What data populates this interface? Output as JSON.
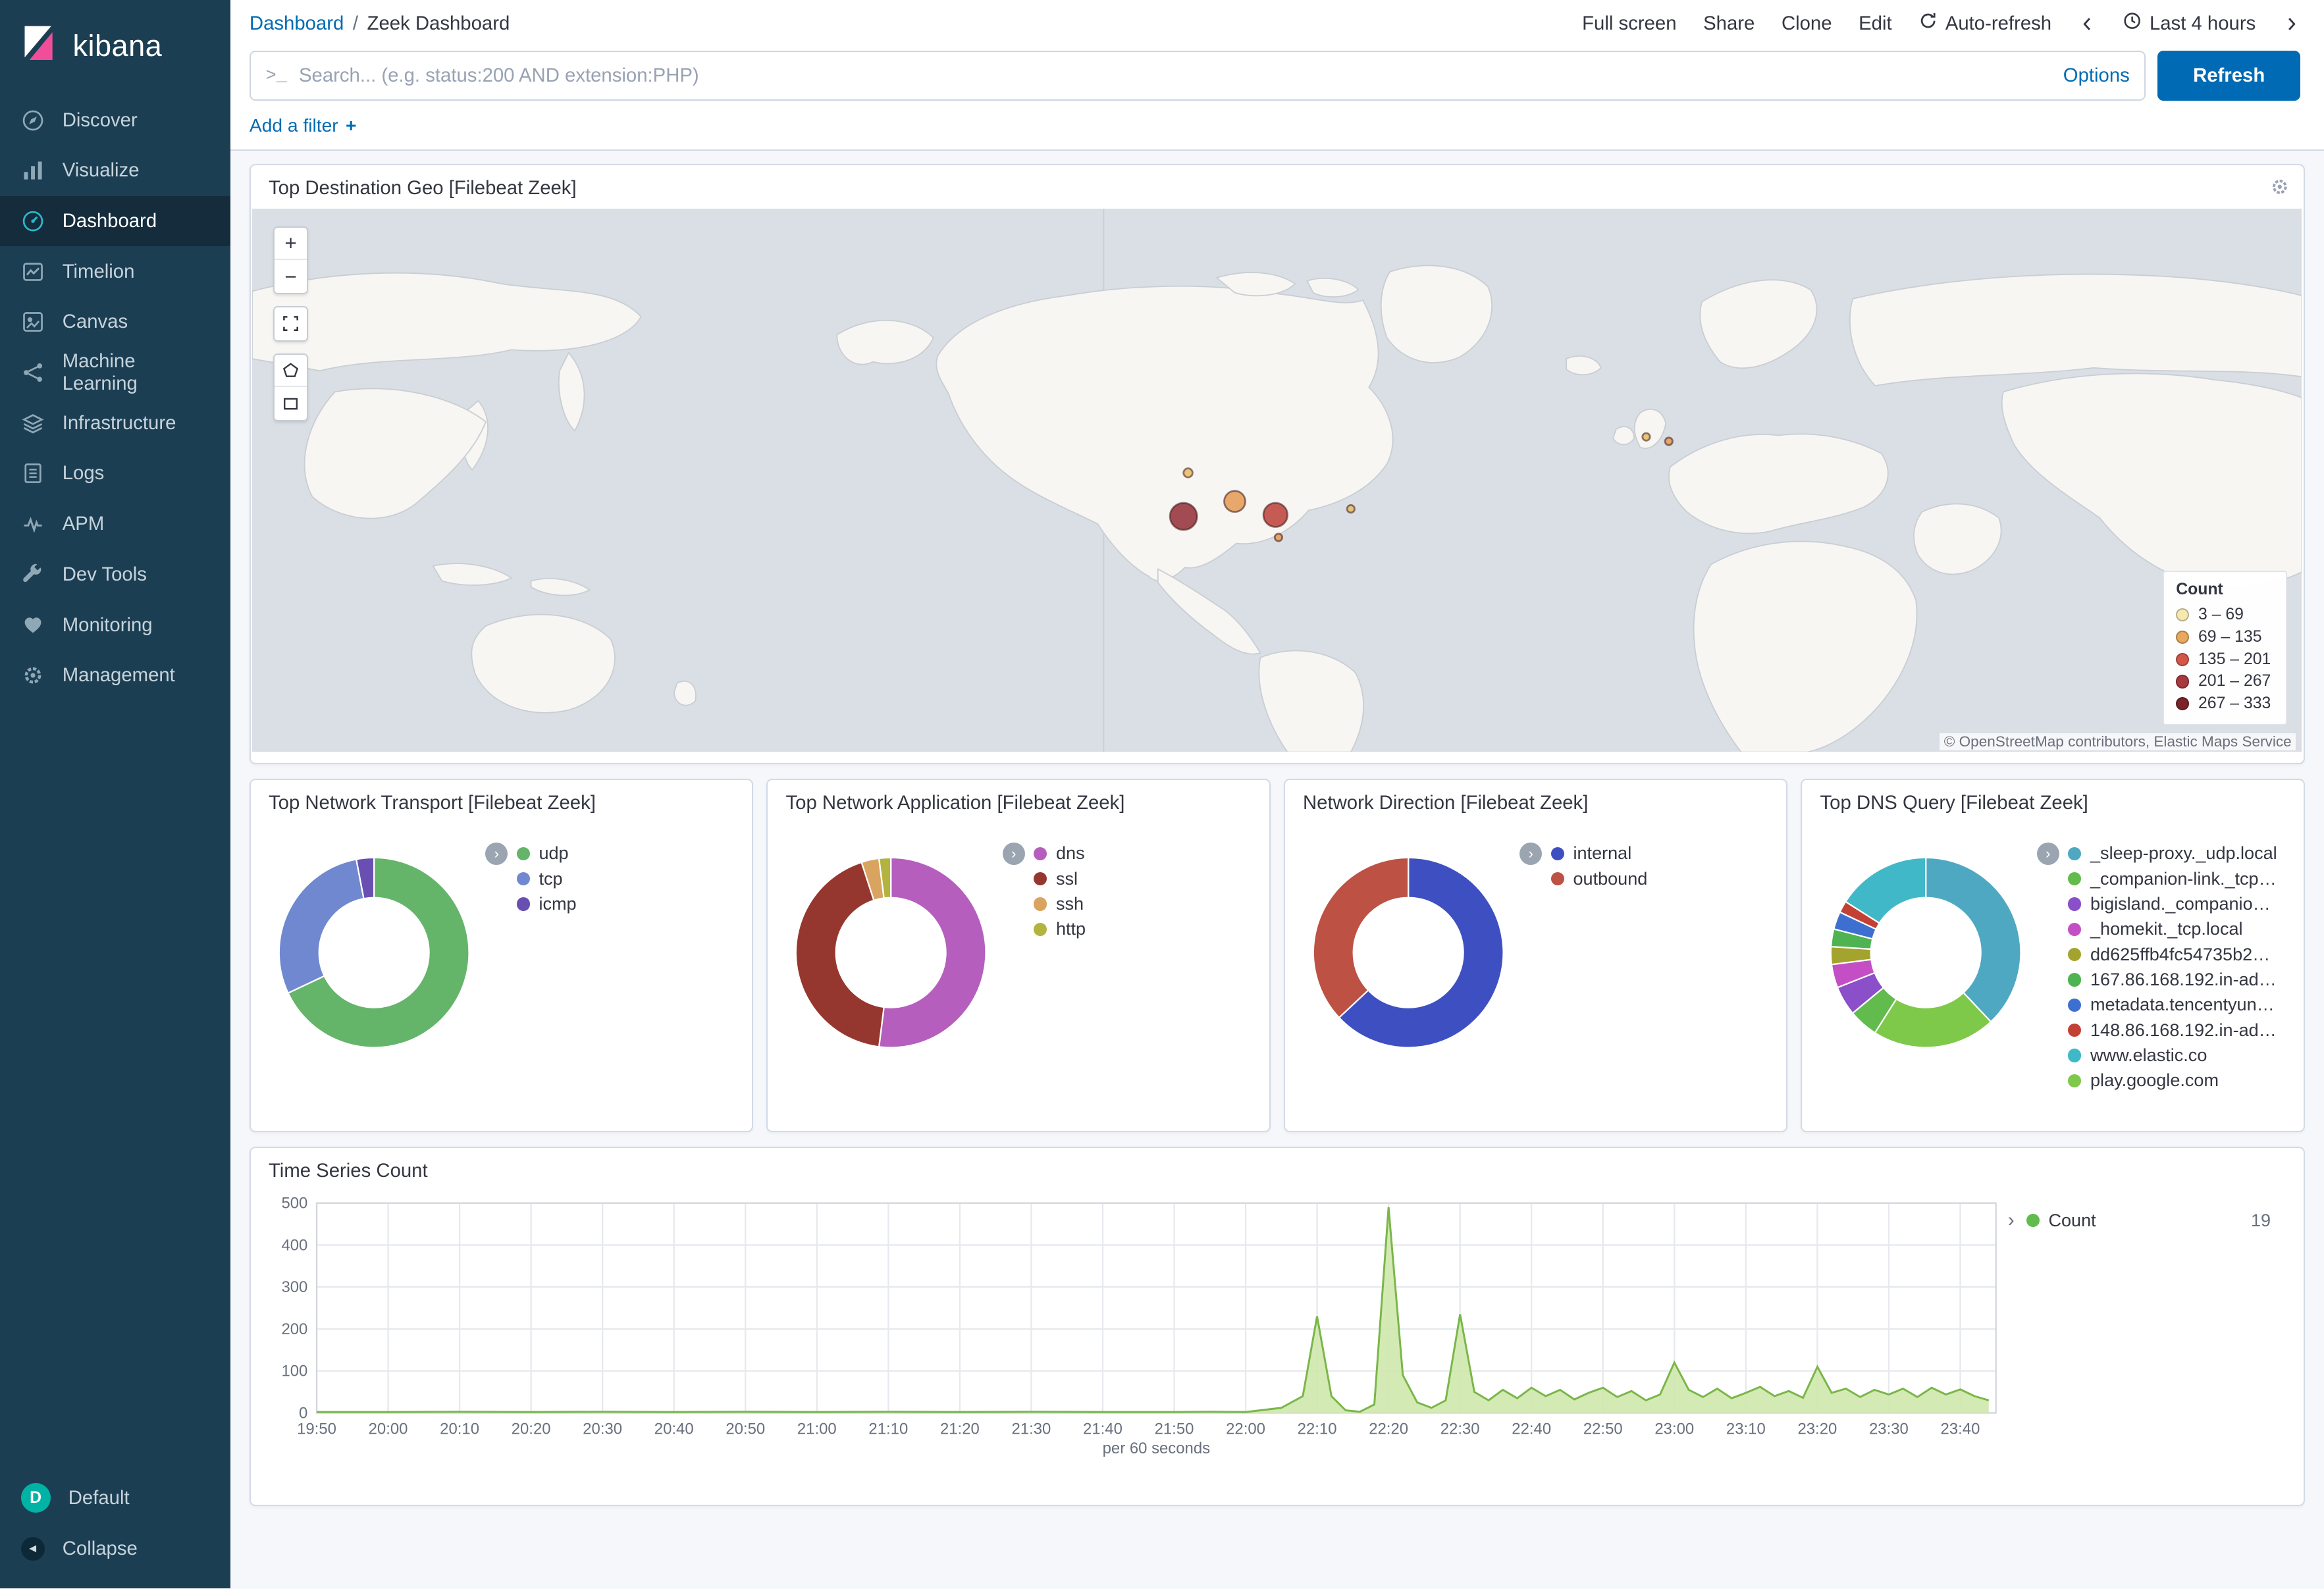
{
  "sidebar": {
    "logo_text": "kibana",
    "items": [
      {
        "label": "Discover",
        "icon": "discover-icon"
      },
      {
        "label": "Visualize",
        "icon": "visualize-icon"
      },
      {
        "label": "Dashboard",
        "icon": "dashboard-icon",
        "selected": true
      },
      {
        "label": "Timelion",
        "icon": "timelion-icon"
      },
      {
        "label": "Canvas",
        "icon": "canvas-icon"
      },
      {
        "label": "Machine Learning",
        "icon": "machine-learning-icon"
      },
      {
        "label": "Infrastructure",
        "icon": "infrastructure-icon"
      },
      {
        "label": "Logs",
        "icon": "logs-icon"
      },
      {
        "label": "APM",
        "icon": "apm-icon"
      },
      {
        "label": "Dev Tools",
        "icon": "dev-tools-icon"
      },
      {
        "label": "Monitoring",
        "icon": "monitoring-icon"
      },
      {
        "label": "Management",
        "icon": "management-icon"
      }
    ],
    "footer": {
      "default_label": "Default",
      "default_avatar": "D",
      "collapse_label": "Collapse"
    }
  },
  "header": {
    "breadcrumb_link": "Dashboard",
    "breadcrumb_sep": "/",
    "breadcrumb_current": "Zeek Dashboard",
    "actions": [
      "Full screen",
      "Share",
      "Clone",
      "Edit"
    ],
    "auto_refresh_label": "Auto-refresh",
    "time_range_label": "Last 4 hours"
  },
  "query_bar": {
    "placeholder": "Search... (e.g. status:200 AND extension:PHP)",
    "options_label": "Options",
    "refresh_label": "Refresh",
    "add_filter_label": "Add a filter",
    "add_filter_plus": "+"
  },
  "panels": {
    "map": {
      "title": "Top Destination Geo [Filebeat Zeek]",
      "legend_title": "Count",
      "legend": [
        {
          "label": "3 – 69",
          "color": "#f6e9b0"
        },
        {
          "label": "69 – 135",
          "color": "#e8a95f"
        },
        {
          "label": "135 – 201",
          "color": "#d2574a"
        },
        {
          "label": "201 – 267",
          "color": "#a63a3e"
        },
        {
          "label": "267 – 333",
          "color": "#7a2328"
        }
      ],
      "attribution": "© OpenStreetMap contributors, Elastic Maps Service",
      "markers": [
        {
          "x": 618,
          "y": 205,
          "r": 9,
          "color": "#993941"
        },
        {
          "x": 652,
          "y": 195,
          "r": 7,
          "color": "#e5a05c"
        },
        {
          "x": 679,
          "y": 204,
          "r": 8,
          "color": "#bf4b41"
        },
        {
          "x": 621,
          "y": 176,
          "r": 3,
          "color": "#e5c06c"
        },
        {
          "x": 681,
          "y": 219,
          "r": 2.5,
          "color": "#e5a05c"
        },
        {
          "x": 729,
          "y": 200,
          "r": 2.5,
          "color": "#e5c06c"
        },
        {
          "x": 925,
          "y": 152,
          "r": 2.5,
          "color": "#e5c06c"
        },
        {
          "x": 940,
          "y": 155,
          "r": 2.5,
          "color": "#e5a05c"
        }
      ]
    },
    "donuts": [
      {
        "title": "Top Network Transport [Filebeat Zeek]",
        "chart_data": {
          "type": "pie",
          "slices": [
            {
              "label": "udp",
              "value": 68,
              "color": "#64b46a"
            },
            {
              "label": "tcp",
              "value": 29,
              "color": "#7088cf"
            },
            {
              "label": "icmp",
              "value": 3,
              "color": "#6a4fb3"
            }
          ]
        }
      },
      {
        "title": "Top Network Application [Filebeat Zeek]",
        "chart_data": {
          "type": "pie",
          "slices": [
            {
              "label": "dns",
              "value": 52,
              "color": "#b55ebe"
            },
            {
              "label": "ssl",
              "value": 43,
              "color": "#96372f"
            },
            {
              "label": "ssh",
              "value": 3,
              "color": "#d9a45f"
            },
            {
              "label": "http",
              "value": 2,
              "color": "#b3b33f"
            }
          ]
        }
      },
      {
        "title": "Network Direction [Filebeat Zeek]",
        "chart_data": {
          "type": "pie",
          "slices": [
            {
              "label": "internal",
              "value": 63,
              "color": "#3e4fc1"
            },
            {
              "label": "outbound",
              "value": 37,
              "color": "#bc5144"
            }
          ]
        }
      },
      {
        "title": "Top DNS Query [Filebeat Zeek]",
        "chart_data": {
          "type": "pie",
          "slices": [
            {
              "label": "_sleep-proxy._udp.local",
              "value": 38,
              "color": "#4fa8c2"
            },
            {
              "label": "_companion-link._tcp…",
              "value": 5,
              "color": "#62bb4d"
            },
            {
              "label": "bigisland._companio…",
              "value": 5,
              "color": "#8a4fc9"
            },
            {
              "label": "_homekit._tcp.local",
              "value": 4,
              "color": "#c44fc4"
            },
            {
              "label": "dd625ffb4fc54735b2…",
              "value": 3,
              "color": "#a3a32e"
            },
            {
              "label": "167.86.168.192.in-ad…",
              "value": 3,
              "color": "#4fb352"
            },
            {
              "label": "metadata.tencentyun…",
              "value": 3,
              "color": "#3d6fd1"
            },
            {
              "label": "148.86.168.192.in-ad…",
              "value": 2,
              "color": "#c24034"
            },
            {
              "label": "www.elastic.co",
              "value": 16,
              "color": "#41b8c8"
            },
            {
              "label": "play.google.com",
              "value": 21,
              "color": "#7ec84a"
            }
          ],
          "draw_order": [
            0,
            9,
            1,
            2,
            3,
            4,
            5,
            6,
            7,
            8
          ]
        }
      }
    ],
    "time_series": {
      "title": "Time Series Count",
      "legend": {
        "label": "Count",
        "value": 19,
        "color": "#62bb4d"
      },
      "chart_data": {
        "type": "area",
        "title": "Time Series Count",
        "xlabel": "per 60 seconds",
        "ylabel": "",
        "ylim": [
          0,
          500
        ],
        "y_ticks": [
          0,
          100,
          200,
          300,
          400,
          500
        ],
        "x_ticks": [
          "19:50",
          "20:00",
          "20:10",
          "20:20",
          "20:30",
          "20:40",
          "20:50",
          "21:00",
          "21:10",
          "21:20",
          "21:30",
          "21:40",
          "21:50",
          "22:00",
          "22:10",
          "22:20",
          "22:30",
          "22:40",
          "22:50",
          "23:00",
          "23:10",
          "23:20",
          "23:30",
          "23:40"
        ],
        "x_range_minutes": [
          0,
          235
        ],
        "line_color": "#7ab648",
        "fill_color": "#cfe8ad",
        "points": [
          [
            0,
            2
          ],
          [
            10,
            2
          ],
          [
            20,
            3
          ],
          [
            30,
            2
          ],
          [
            40,
            3
          ],
          [
            50,
            2
          ],
          [
            60,
            3
          ],
          [
            70,
            2
          ],
          [
            80,
            3
          ],
          [
            90,
            2
          ],
          [
            100,
            3
          ],
          [
            110,
            2
          ],
          [
            120,
            2
          ],
          [
            125,
            3
          ],
          [
            130,
            2
          ],
          [
            132,
            6
          ],
          [
            135,
            12
          ],
          [
            138,
            40
          ],
          [
            140,
            230
          ],
          [
            142,
            40
          ],
          [
            144,
            6
          ],
          [
            146,
            3
          ],
          [
            148,
            20
          ],
          [
            150,
            490
          ],
          [
            152,
            90
          ],
          [
            154,
            25
          ],
          [
            156,
            12
          ],
          [
            158,
            30
          ],
          [
            160,
            235
          ],
          [
            162,
            50
          ],
          [
            164,
            30
          ],
          [
            166,
            55
          ],
          [
            168,
            35
          ],
          [
            170,
            60
          ],
          [
            172,
            40
          ],
          [
            174,
            55
          ],
          [
            176,
            32
          ],
          [
            178,
            48
          ],
          [
            180,
            60
          ],
          [
            182,
            38
          ],
          [
            184,
            52
          ],
          [
            186,
            30
          ],
          [
            188,
            44
          ],
          [
            190,
            120
          ],
          [
            192,
            55
          ],
          [
            194,
            38
          ],
          [
            196,
            58
          ],
          [
            198,
            35
          ],
          [
            200,
            48
          ],
          [
            202,
            62
          ],
          [
            204,
            40
          ],
          [
            206,
            52
          ],
          [
            208,
            36
          ],
          [
            210,
            110
          ],
          [
            212,
            48
          ],
          [
            214,
            58
          ],
          [
            216,
            38
          ],
          [
            218,
            55
          ],
          [
            220,
            44
          ],
          [
            222,
            58
          ],
          [
            224,
            38
          ],
          [
            226,
            60
          ],
          [
            228,
            44
          ],
          [
            230,
            56
          ],
          [
            232,
            40
          ],
          [
            234,
            30
          ]
        ]
      }
    }
  }
}
